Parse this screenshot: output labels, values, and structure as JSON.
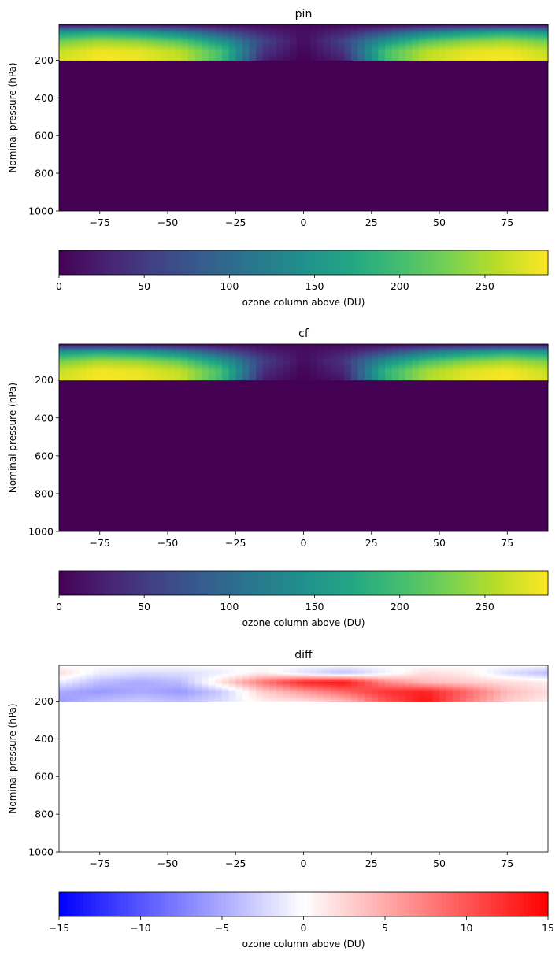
{
  "chart_data": [
    {
      "type": "heatmap",
      "title": "pin",
      "xlabel": "",
      "ylabel": "Nominal pressure (hPa)",
      "xlim": [
        -90,
        90
      ],
      "ylim": [
        1000,
        10
      ],
      "xticks": [
        "−75",
        "−50",
        "−25",
        "0",
        "25",
        "50",
        "75"
      ],
      "yticks": [
        "200",
        "400",
        "600",
        "800",
        "1000"
      ],
      "colormap": "viridis",
      "colorbar": {
        "label": "ozone column above (DU)",
        "range": [
          0,
          287
        ],
        "ticks": [
          "0",
          "50",
          "100",
          "150",
          "200",
          "250"
        ]
      },
      "field": {
        "lat": [
          -90,
          -75,
          -60,
          -45,
          -30,
          -15,
          0,
          15,
          30,
          45,
          60,
          75,
          90
        ],
        "pressure": [
          10,
          50,
          100,
          150,
          200
        ],
        "values": [
          [
            5,
            5,
            5,
            5,
            5,
            5,
            5,
            5,
            5,
            5,
            5,
            5,
            5
          ],
          [
            150,
            170,
            150,
            120,
            70,
            30,
            10,
            30,
            70,
            120,
            150,
            170,
            150
          ],
          [
            225,
            245,
            235,
            210,
            150,
            60,
            8,
            60,
            150,
            210,
            235,
            245,
            225
          ],
          [
            260,
            280,
            275,
            255,
            200,
            45,
            3,
            45,
            200,
            255,
            275,
            280,
            260
          ],
          [
            270,
            285,
            280,
            262,
            195,
            25,
            0,
            25,
            195,
            262,
            280,
            285,
            270
          ]
        ],
        "below_tropopause": 0
      }
    },
    {
      "type": "heatmap",
      "title": "cf",
      "xlabel": "",
      "ylabel": "Nominal pressure (hPa)",
      "xlim": [
        -90,
        90
      ],
      "ylim": [
        1000,
        10
      ],
      "xticks": [
        "−75",
        "−50",
        "−25",
        "0",
        "25",
        "50",
        "75"
      ],
      "yticks": [
        "200",
        "400",
        "600",
        "800",
        "1000"
      ],
      "colormap": "viridis",
      "colorbar": {
        "label": "ozone column above (DU)",
        "range": [
          0,
          287
        ],
        "ticks": [
          "0",
          "50",
          "100",
          "150",
          "200",
          "250"
        ]
      },
      "field": {
        "lat": [
          -90,
          -75,
          -60,
          -45,
          -30,
          -15,
          0,
          15,
          30,
          45,
          60,
          75,
          90
        ],
        "pressure": [
          10,
          50,
          100,
          150,
          200
        ],
        "values": [
          [
            5,
            5,
            5,
            5,
            5,
            5,
            5,
            5,
            5,
            5,
            5,
            5,
            5
          ],
          [
            150,
            168,
            155,
            125,
            72,
            28,
            10,
            25,
            62,
            112,
            145,
            168,
            152
          ],
          [
            225,
            248,
            240,
            215,
            152,
            55,
            8,
            45,
            140,
            200,
            230,
            245,
            228
          ],
          [
            262,
            282,
            276,
            258,
            200,
            40,
            3,
            32,
            185,
            245,
            272,
            282,
            262
          ],
          [
            270,
            285,
            281,
            265,
            192,
            22,
            0,
            18,
            180,
            252,
            278,
            285,
            270
          ]
        ],
        "below_tropopause": 0
      }
    },
    {
      "type": "heatmap",
      "title": "diff",
      "xlabel": "",
      "ylabel": "Nominal pressure (hPa)",
      "xlim": [
        -90,
        90
      ],
      "ylim": [
        1000,
        10
      ],
      "xticks": [
        "−75",
        "−50",
        "−25",
        "0",
        "25",
        "50",
        "75"
      ],
      "yticks": [
        "200",
        "400",
        "600",
        "800",
        "1000"
      ],
      "colormap": "bwr",
      "colorbar": {
        "label": "ozone column above (DU)",
        "range": [
          -15,
          15
        ],
        "ticks": [
          "−15",
          "−10",
          "−5",
          "0",
          "5",
          "10",
          "15"
        ]
      },
      "field": {
        "lat": [
          -90,
          -75,
          -60,
          -45,
          -30,
          -15,
          0,
          15,
          30,
          45,
          60,
          75,
          90
        ],
        "pressure": [
          10,
          50,
          100,
          150,
          200
        ],
        "values": [
          [
            0,
            0,
            0,
            0,
            0,
            0,
            0,
            0,
            0,
            0,
            0,
            0,
            0
          ],
          [
            2,
            -1,
            -2,
            -2,
            -1,
            1,
            -2,
            -4,
            -1,
            2,
            1,
            -2,
            -4
          ],
          [
            -1,
            -4,
            -5,
            -4,
            2,
            8,
            13,
            14,
            7,
            4,
            3,
            2,
            1
          ],
          [
            -5,
            -6,
            -5,
            -6,
            -3,
            3,
            6,
            9,
            12,
            13,
            9,
            4,
            2
          ],
          [
            -6,
            -4,
            -3,
            -4,
            -2,
            1,
            2,
            4,
            10,
            14,
            8,
            3,
            1
          ]
        ],
        "below_tropopause": 0
      }
    }
  ]
}
